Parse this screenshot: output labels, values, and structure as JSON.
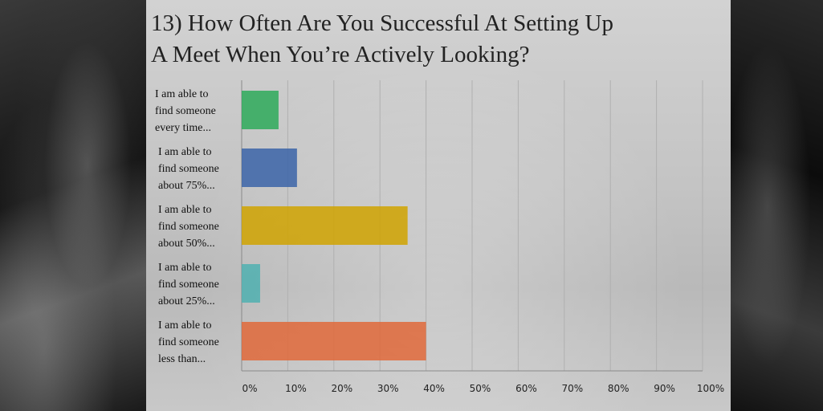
{
  "title_lines": [
    "13) How Often Are You Successful At Setting Up",
    "A Meet When You’re Actively Looking?"
  ],
  "chart_data": {
    "type": "bar",
    "orientation": "horizontal",
    "categories": [
      [
        "I am able to",
        "find someone",
        "every time..."
      ],
      [
        "I am able to",
        "find someone",
        "about 75%..."
      ],
      [
        "I am able to",
        "find someone",
        "about 50%..."
      ],
      [
        "I am able to",
        "find someone",
        "about 25%..."
      ],
      [
        "I am able to",
        "find someone",
        "less than..."
      ]
    ],
    "values": [
      8,
      12,
      36,
      4,
      40
    ],
    "colors": [
      "#2eaa5a",
      "#3b64a8",
      "#d0a300",
      "#4fb0b0",
      "#e0693a"
    ],
    "xlim": [
      0,
      100
    ],
    "xticks": [
      "0%",
      "10%",
      "20%",
      "30%",
      "40%",
      "50%",
      "60%",
      "70%",
      "80%",
      "90%",
      "100%"
    ],
    "grid": true
  }
}
